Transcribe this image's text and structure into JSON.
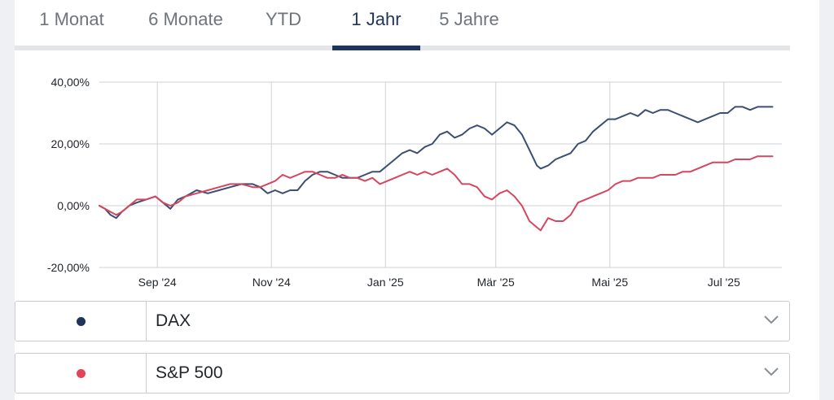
{
  "tabs": [
    {
      "label": "1 Monat"
    },
    {
      "label": "6 Monate"
    },
    {
      "label": "YTD"
    },
    {
      "label": "1 Jahr"
    },
    {
      "label": "5 Jahre"
    }
  ],
  "active_tab": "1 Jahr",
  "colors": {
    "dax": "#3c4f72",
    "sp500": "#d4475f",
    "active": "#1f3458",
    "grid": "#cfd2d6"
  },
  "selectors": [
    {
      "label": "DAX",
      "dot_color": "#1f3458",
      "icon": "chevron-down-icon"
    },
    {
      "label": "S&P 500",
      "dot_color": "#e2445a",
      "icon": "chevron-down-icon"
    }
  ],
  "chart_data": {
    "type": "line",
    "y_ticks": [
      "40,00%",
      "20,00%",
      "0,00%",
      "-20,00%"
    ],
    "y_tick_values": [
      40,
      20,
      0,
      -20
    ],
    "x_ticks": [
      "Sep '24",
      "Nov '24",
      "Jan '25",
      "Mär '25",
      "Mai '25",
      "Jul '25"
    ],
    "x_tick_values": [
      31,
      92,
      153,
      212,
      273,
      334
    ],
    "ylim": [
      -20,
      40
    ],
    "xlim": [
      0,
      365
    ],
    "x_unit": "days",
    "grid": true,
    "series": [
      {
        "name": "DAX",
        "x": [
          0,
          3,
          6,
          9,
          12,
          16,
          20,
          25,
          30,
          34,
          38,
          42,
          46,
          52,
          58,
          64,
          70,
          76,
          82,
          86,
          90,
          94,
          98,
          102,
          106,
          110,
          114,
          118,
          122,
          126,
          130,
          134,
          138,
          142,
          146,
          150,
          154,
          158,
          162,
          166,
          170,
          174,
          178,
          182,
          186,
          190,
          194,
          198,
          202,
          206,
          210,
          214,
          218,
          222,
          226,
          230,
          234,
          236,
          240,
          244,
          248,
          252,
          256,
          260,
          264,
          268,
          272,
          276,
          280,
          284,
          288,
          292,
          296,
          300,
          304,
          308,
          312,
          316,
          320,
          324,
          328,
          332,
          336,
          340,
          344,
          348,
          352,
          356,
          360
        ],
        "y": [
          0,
          -1,
          -3,
          -4,
          -2,
          0,
          1,
          2,
          3,
          1,
          -1,
          2,
          3,
          5,
          4,
          5,
          6,
          7,
          7,
          6,
          4,
          5,
          4,
          5,
          5,
          8,
          10,
          11,
          11,
          10,
          9,
          9,
          9,
          10,
          11,
          11,
          13,
          15,
          17,
          18,
          17,
          19,
          20,
          23,
          24,
          22,
          23,
          25,
          26,
          25,
          23,
          25,
          27,
          26,
          23,
          18,
          13,
          12,
          13,
          15,
          16,
          17,
          20,
          21,
          24,
          26,
          28,
          28,
          29,
          30,
          29,
          31,
          30,
          31,
          31,
          30,
          29,
          28,
          27,
          28,
          29,
          30,
          30,
          32,
          32,
          31,
          32,
          32,
          32
        ]
      },
      {
        "name": "S&P 500",
        "x": [
          0,
          3,
          6,
          9,
          12,
          16,
          20,
          25,
          30,
          34,
          38,
          42,
          46,
          52,
          58,
          64,
          70,
          76,
          82,
          86,
          90,
          94,
          98,
          102,
          106,
          110,
          114,
          118,
          122,
          126,
          130,
          134,
          138,
          142,
          146,
          150,
          154,
          158,
          162,
          166,
          170,
          174,
          178,
          182,
          186,
          190,
          194,
          198,
          202,
          206,
          210,
          214,
          218,
          222,
          226,
          230,
          234,
          236,
          240,
          244,
          248,
          252,
          256,
          260,
          264,
          268,
          272,
          276,
          280,
          284,
          288,
          292,
          296,
          300,
          304,
          308,
          312,
          316,
          320,
          324,
          328,
          332,
          336,
          340,
          344,
          348,
          352,
          356,
          360
        ],
        "y": [
          0,
          -1,
          -2,
          -3,
          -2,
          0,
          2,
          2,
          3,
          1,
          0,
          1,
          3,
          4,
          5,
          6,
          7,
          7,
          6,
          6,
          7,
          8,
          10,
          9,
          10,
          11,
          11,
          10,
          9,
          9,
          10,
          9,
          9,
          8,
          9,
          7,
          8,
          9,
          10,
          11,
          10,
          11,
          10,
          11,
          12,
          10,
          7,
          7,
          6,
          3,
          2,
          4,
          5,
          3,
          0,
          -5,
          -7,
          -8,
          -4,
          -5,
          -5,
          -3,
          1,
          2,
          3,
          4,
          5,
          7,
          8,
          8,
          9,
          9,
          9,
          10,
          10,
          10,
          11,
          11,
          12,
          13,
          14,
          14,
          14,
          15,
          15,
          15,
          16,
          16,
          16
        ]
      }
    ]
  }
}
